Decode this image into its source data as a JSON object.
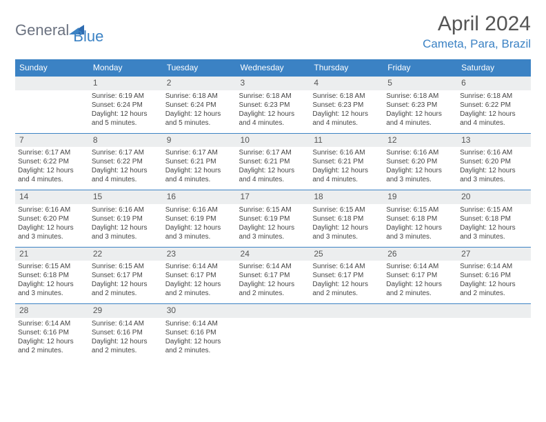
{
  "brand": {
    "text1": "General",
    "text2": "Blue"
  },
  "title": "April 2024",
  "location": "Cameta, Para, Brazil",
  "weekdays": [
    "Sunday",
    "Monday",
    "Tuesday",
    "Wednesday",
    "Thursday",
    "Friday",
    "Saturday"
  ],
  "colors": {
    "header_bg": "#3b82c4",
    "header_fg": "#ffffff",
    "daynum_bg": "#eceeef",
    "border": "#3b82c4",
    "text": "#444444",
    "title": "#555555"
  },
  "weeks": [
    [
      {
        "n": "",
        "sr": "",
        "ss": "",
        "dl": ""
      },
      {
        "n": "1",
        "sr": "Sunrise: 6:19 AM",
        "ss": "Sunset: 6:24 PM",
        "dl": "Daylight: 12 hours and 5 minutes."
      },
      {
        "n": "2",
        "sr": "Sunrise: 6:18 AM",
        "ss": "Sunset: 6:24 PM",
        "dl": "Daylight: 12 hours and 5 minutes."
      },
      {
        "n": "3",
        "sr": "Sunrise: 6:18 AM",
        "ss": "Sunset: 6:23 PM",
        "dl": "Daylight: 12 hours and 4 minutes."
      },
      {
        "n": "4",
        "sr": "Sunrise: 6:18 AM",
        "ss": "Sunset: 6:23 PM",
        "dl": "Daylight: 12 hours and 4 minutes."
      },
      {
        "n": "5",
        "sr": "Sunrise: 6:18 AM",
        "ss": "Sunset: 6:23 PM",
        "dl": "Daylight: 12 hours and 4 minutes."
      },
      {
        "n": "6",
        "sr": "Sunrise: 6:18 AM",
        "ss": "Sunset: 6:22 PM",
        "dl": "Daylight: 12 hours and 4 minutes."
      }
    ],
    [
      {
        "n": "7",
        "sr": "Sunrise: 6:17 AM",
        "ss": "Sunset: 6:22 PM",
        "dl": "Daylight: 12 hours and 4 minutes."
      },
      {
        "n": "8",
        "sr": "Sunrise: 6:17 AM",
        "ss": "Sunset: 6:22 PM",
        "dl": "Daylight: 12 hours and 4 minutes."
      },
      {
        "n": "9",
        "sr": "Sunrise: 6:17 AM",
        "ss": "Sunset: 6:21 PM",
        "dl": "Daylight: 12 hours and 4 minutes."
      },
      {
        "n": "10",
        "sr": "Sunrise: 6:17 AM",
        "ss": "Sunset: 6:21 PM",
        "dl": "Daylight: 12 hours and 4 minutes."
      },
      {
        "n": "11",
        "sr": "Sunrise: 6:16 AM",
        "ss": "Sunset: 6:21 PM",
        "dl": "Daylight: 12 hours and 4 minutes."
      },
      {
        "n": "12",
        "sr": "Sunrise: 6:16 AM",
        "ss": "Sunset: 6:20 PM",
        "dl": "Daylight: 12 hours and 3 minutes."
      },
      {
        "n": "13",
        "sr": "Sunrise: 6:16 AM",
        "ss": "Sunset: 6:20 PM",
        "dl": "Daylight: 12 hours and 3 minutes."
      }
    ],
    [
      {
        "n": "14",
        "sr": "Sunrise: 6:16 AM",
        "ss": "Sunset: 6:20 PM",
        "dl": "Daylight: 12 hours and 3 minutes."
      },
      {
        "n": "15",
        "sr": "Sunrise: 6:16 AM",
        "ss": "Sunset: 6:19 PM",
        "dl": "Daylight: 12 hours and 3 minutes."
      },
      {
        "n": "16",
        "sr": "Sunrise: 6:16 AM",
        "ss": "Sunset: 6:19 PM",
        "dl": "Daylight: 12 hours and 3 minutes."
      },
      {
        "n": "17",
        "sr": "Sunrise: 6:15 AM",
        "ss": "Sunset: 6:19 PM",
        "dl": "Daylight: 12 hours and 3 minutes."
      },
      {
        "n": "18",
        "sr": "Sunrise: 6:15 AM",
        "ss": "Sunset: 6:18 PM",
        "dl": "Daylight: 12 hours and 3 minutes."
      },
      {
        "n": "19",
        "sr": "Sunrise: 6:15 AM",
        "ss": "Sunset: 6:18 PM",
        "dl": "Daylight: 12 hours and 3 minutes."
      },
      {
        "n": "20",
        "sr": "Sunrise: 6:15 AM",
        "ss": "Sunset: 6:18 PM",
        "dl": "Daylight: 12 hours and 3 minutes."
      }
    ],
    [
      {
        "n": "21",
        "sr": "Sunrise: 6:15 AM",
        "ss": "Sunset: 6:18 PM",
        "dl": "Daylight: 12 hours and 3 minutes."
      },
      {
        "n": "22",
        "sr": "Sunrise: 6:15 AM",
        "ss": "Sunset: 6:17 PM",
        "dl": "Daylight: 12 hours and 2 minutes."
      },
      {
        "n": "23",
        "sr": "Sunrise: 6:14 AM",
        "ss": "Sunset: 6:17 PM",
        "dl": "Daylight: 12 hours and 2 minutes."
      },
      {
        "n": "24",
        "sr": "Sunrise: 6:14 AM",
        "ss": "Sunset: 6:17 PM",
        "dl": "Daylight: 12 hours and 2 minutes."
      },
      {
        "n": "25",
        "sr": "Sunrise: 6:14 AM",
        "ss": "Sunset: 6:17 PM",
        "dl": "Daylight: 12 hours and 2 minutes."
      },
      {
        "n": "26",
        "sr": "Sunrise: 6:14 AM",
        "ss": "Sunset: 6:17 PM",
        "dl": "Daylight: 12 hours and 2 minutes."
      },
      {
        "n": "27",
        "sr": "Sunrise: 6:14 AM",
        "ss": "Sunset: 6:16 PM",
        "dl": "Daylight: 12 hours and 2 minutes."
      }
    ],
    [
      {
        "n": "28",
        "sr": "Sunrise: 6:14 AM",
        "ss": "Sunset: 6:16 PM",
        "dl": "Daylight: 12 hours and 2 minutes."
      },
      {
        "n": "29",
        "sr": "Sunrise: 6:14 AM",
        "ss": "Sunset: 6:16 PM",
        "dl": "Daylight: 12 hours and 2 minutes."
      },
      {
        "n": "30",
        "sr": "Sunrise: 6:14 AM",
        "ss": "Sunset: 6:16 PM",
        "dl": "Daylight: 12 hours and 2 minutes."
      },
      {
        "n": "",
        "sr": "",
        "ss": "",
        "dl": ""
      },
      {
        "n": "",
        "sr": "",
        "ss": "",
        "dl": ""
      },
      {
        "n": "",
        "sr": "",
        "ss": "",
        "dl": ""
      },
      {
        "n": "",
        "sr": "",
        "ss": "",
        "dl": ""
      }
    ]
  ]
}
